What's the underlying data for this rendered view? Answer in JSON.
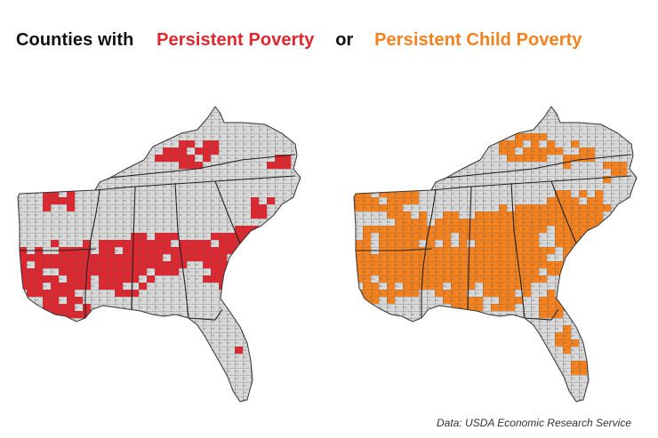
{
  "title": {
    "lead": "Counties with",
    "series_a": "Persistent Poverty",
    "conjunction": "or",
    "series_b": "Persistent Child Poverty"
  },
  "colors": {
    "series_a": "#e0262e",
    "series_b": "#f5821f",
    "county_fill": "#d8d8d8",
    "county_border": "#555555",
    "title_text": "#111111"
  },
  "maps": [
    {
      "name": "persistent-poverty",
      "region": "Southeastern United States",
      "highlight_color": "#e0262e"
    },
    {
      "name": "persistent-child-poverty",
      "region": "Southeastern United States",
      "highlight_color": "#f5821f"
    }
  ],
  "source": "Data: USDA Economic Research Service"
}
